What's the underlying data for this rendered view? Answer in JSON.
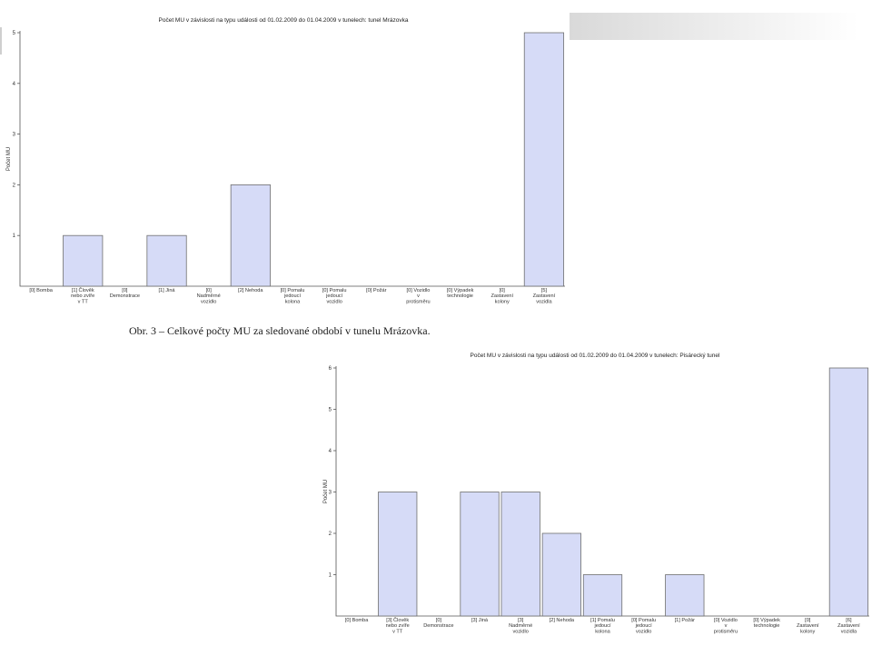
{
  "caption": "Obr. 3 – Celkové počty MU za sledované období v tunelu Mrázovka.",
  "chart_data": [
    {
      "type": "bar",
      "title": "Počet MU v závislosti na typu události od 01.02.2009 do 01.04.2009 v tunelech: tunel Mrázovka",
      "ylabel": "Počet MU",
      "ylim": [
        0,
        5
      ],
      "yticks": [
        1,
        2,
        3,
        4,
        5
      ],
      "categories": [
        [
          "[0] Bomba"
        ],
        [
          "[1] Člověk",
          "nebo zvíře",
          "v TT"
        ],
        [
          "[0]",
          "Demonstrace"
        ],
        [
          "[1] Jiná"
        ],
        [
          "[0]",
          "Nadměrné",
          "vozidlo"
        ],
        [
          "[2] Nehoda"
        ],
        [
          "[0] Pomalu",
          "jedoucí",
          "kolona"
        ],
        [
          "[0] Pomalu",
          "jedoucí",
          "vozidlo"
        ],
        [
          "[0] Požár"
        ],
        [
          "[0] Vozidlo",
          "v",
          "protisměru"
        ],
        [
          "[0] Výpadek",
          "technologie"
        ],
        [
          "[0]",
          "Zastavení",
          "kolony"
        ],
        [
          "[5]",
          "Zastavení",
          "vozidla"
        ]
      ],
      "values": [
        0,
        1,
        0,
        1,
        0,
        2,
        0,
        0,
        0,
        0,
        0,
        0,
        5
      ],
      "bar_color": "#d6dbf7"
    },
    {
      "type": "bar",
      "title": "Počet MU v závislosti na typu události od 01.02.2009 do 01.04.2009 v tunelech: Pisárecký tunel",
      "ylabel": "Počet MU",
      "ylim": [
        0,
        6
      ],
      "yticks": [
        1,
        2,
        3,
        4,
        5,
        6
      ],
      "categories": [
        [
          "[0] Bomba"
        ],
        [
          "[3] Člověk",
          "nebo zvíře",
          "v TT"
        ],
        [
          "[0]",
          "Demonstrace"
        ],
        [
          "[3] Jiná"
        ],
        [
          "[3]",
          "Nadměrné",
          "vozidlo"
        ],
        [
          "[2] Nehoda"
        ],
        [
          "[1] Pomalu",
          "jedoucí",
          "kolona"
        ],
        [
          "[0] Pomalu",
          "jedoucí",
          "vozidlo"
        ],
        [
          "[1] Požár"
        ],
        [
          "[0] Vozidlo",
          "v",
          "protisměru"
        ],
        [
          "[0] Výpadek",
          "technologie"
        ],
        [
          "[0]",
          "Zastavení",
          "kolony"
        ],
        [
          "[6]",
          "Zastavení",
          "vozidla"
        ]
      ],
      "values": [
        0,
        3,
        0,
        3,
        3,
        2,
        1,
        0,
        1,
        0,
        0,
        0,
        6
      ],
      "bar_color": "#d6dbf7"
    }
  ]
}
